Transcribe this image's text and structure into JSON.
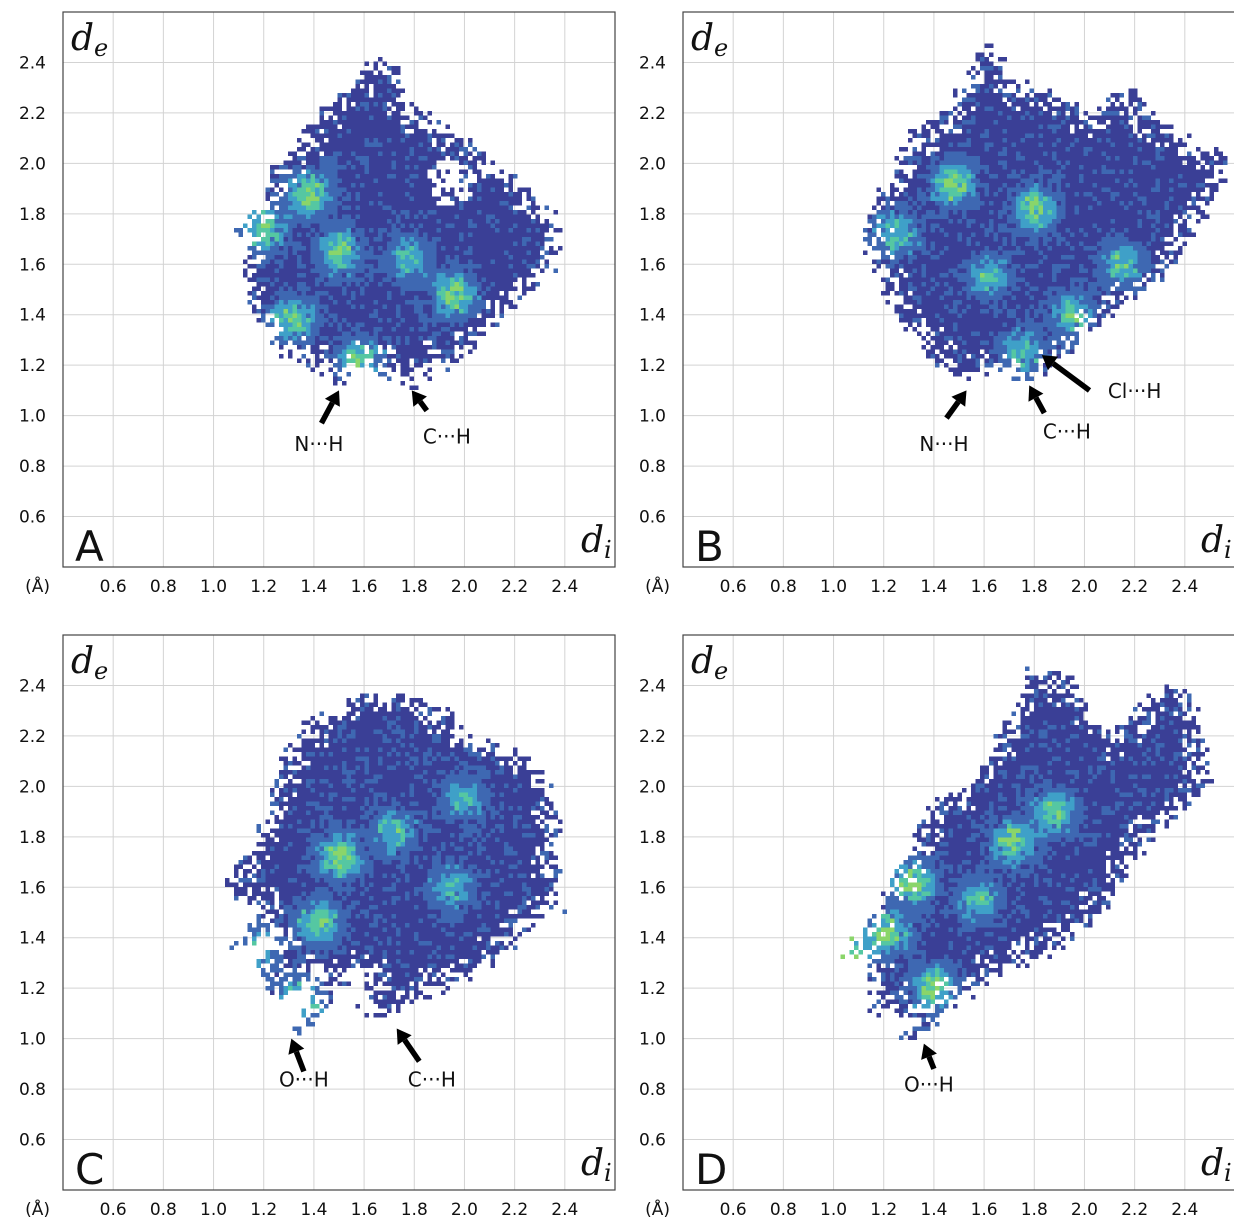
{
  "figure": {
    "unit_label": "(Å)"
  },
  "chart_data": [
    {
      "type": "heatmap",
      "panel_label": "A",
      "xlabel": "d",
      "xlabel_sub": "i",
      "ylabel": "d",
      "ylabel_sub": "e",
      "x_ticks": [
        "0.6",
        "0.8",
        "1.0",
        "1.2",
        "1.4",
        "1.6",
        "1.8",
        "2.0",
        "2.2",
        "2.4"
      ],
      "y_ticks": [
        "0.6",
        "0.8",
        "1.0",
        "1.2",
        "1.4",
        "1.6",
        "1.8",
        "2.0",
        "2.2",
        "2.4"
      ],
      "xlim": [
        0.4,
        2.6
      ],
      "ylim": [
        0.4,
        2.6
      ],
      "grid": true,
      "color_scale": [
        "#3a3f96",
        "#3e68b2",
        "#3fa0c8",
        "#55c7a2",
        "#8ad56a"
      ],
      "outline": [
        [
          1.08,
          1.7
        ],
        [
          1.18,
          1.82
        ],
        [
          1.23,
          2.02
        ],
        [
          1.33,
          2.08
        ],
        [
          1.42,
          2.22
        ],
        [
          1.52,
          2.28
        ],
        [
          1.63,
          2.43
        ],
        [
          1.73,
          2.38
        ],
        [
          1.79,
          2.23
        ],
        [
          1.93,
          2.16
        ],
        [
          2.05,
          2.08
        ],
        [
          2.2,
          1.98
        ],
        [
          2.3,
          1.86
        ],
        [
          2.4,
          1.74
        ],
        [
          2.36,
          1.58
        ],
        [
          2.24,
          1.46
        ],
        [
          2.12,
          1.33
        ],
        [
          2.01,
          1.24
        ],
        [
          1.9,
          1.17
        ],
        [
          1.82,
          1.12
        ],
        [
          1.74,
          1.11
        ],
        [
          1.68,
          1.15
        ],
        [
          1.62,
          1.19
        ],
        [
          1.56,
          1.14
        ],
        [
          1.5,
          1.1
        ],
        [
          1.45,
          1.15
        ],
        [
          1.36,
          1.2
        ],
        [
          1.26,
          1.24
        ],
        [
          1.19,
          1.33
        ],
        [
          1.13,
          1.45
        ],
        [
          1.1,
          1.52
        ],
        [
          1.12,
          1.64
        ]
      ],
      "hotspots": [
        [
          1.38,
          1.88,
          0.85
        ],
        [
          1.5,
          1.65,
          0.7
        ],
        [
          1.32,
          1.38,
          0.72
        ],
        [
          1.96,
          1.48,
          0.78
        ],
        [
          1.78,
          1.62,
          0.58
        ],
        [
          1.58,
          1.22,
          0.7
        ],
        [
          1.2,
          1.74,
          0.75
        ]
      ],
      "holes": [
        [
          1.95,
          1.93,
          0.09
        ],
        [
          2.12,
          2.0,
          0.06
        ]
      ],
      "annotations": [
        {
          "text": "N···H",
          "tip": [
            1.5,
            1.1
          ],
          "tail": [
            1.43,
            0.97
          ],
          "label_at": [
            1.42,
            0.86
          ]
        },
        {
          "text": "C···H",
          "tip": [
            1.79,
            1.1
          ],
          "tail": [
            1.85,
            1.02
          ],
          "label_at": [
            1.93,
            0.89
          ]
        }
      ]
    },
    {
      "type": "heatmap",
      "panel_label": "B",
      "xlabel": "d",
      "xlabel_sub": "i",
      "ylabel": "d",
      "ylabel_sub": "e",
      "x_ticks": [
        "0.6",
        "0.8",
        "1.0",
        "1.2",
        "1.4",
        "1.6",
        "1.8",
        "2.0",
        "2.2",
        "2.4"
      ],
      "y_ticks": [
        "0.6",
        "0.8",
        "1.0",
        "1.2",
        "1.4",
        "1.6",
        "1.8",
        "2.0",
        "2.2",
        "2.4"
      ],
      "xlim": [
        0.4,
        2.6
      ],
      "ylim": [
        0.4,
        2.6
      ],
      "grid": true,
      "color_scale": [
        "#3a3f96",
        "#3e68b2",
        "#3fa0c8",
        "#55c7a2",
        "#8ad56a"
      ],
      "outline": [
        [
          1.12,
          1.78
        ],
        [
          1.22,
          1.94
        ],
        [
          1.3,
          2.13
        ],
        [
          1.42,
          2.18
        ],
        [
          1.52,
          2.33
        ],
        [
          1.63,
          2.52
        ],
        [
          1.72,
          2.34
        ],
        [
          1.86,
          2.28
        ],
        [
          2.02,
          2.21
        ],
        [
          2.12,
          2.28
        ],
        [
          2.2,
          2.33
        ],
        [
          2.26,
          2.2
        ],
        [
          2.36,
          2.13
        ],
        [
          2.45,
          2.08
        ],
        [
          2.56,
          2.05
        ],
        [
          2.55,
          1.88
        ],
        [
          2.43,
          1.72
        ],
        [
          2.36,
          1.6
        ],
        [
          2.26,
          1.5
        ],
        [
          2.14,
          1.42
        ],
        [
          2.02,
          1.32
        ],
        [
          1.92,
          1.22
        ],
        [
          1.82,
          1.15
        ],
        [
          1.74,
          1.12
        ],
        [
          1.68,
          1.16
        ],
        [
          1.58,
          1.17
        ],
        [
          1.52,
          1.13
        ],
        [
          1.45,
          1.18
        ],
        [
          1.38,
          1.22
        ],
        [
          1.32,
          1.31
        ],
        [
          1.25,
          1.39
        ],
        [
          1.18,
          1.54
        ],
        [
          1.12,
          1.65
        ]
      ],
      "hotspots": [
        [
          1.48,
          1.92,
          0.82
        ],
        [
          1.8,
          1.82,
          0.78
        ],
        [
          1.95,
          1.4,
          0.62
        ],
        [
          2.15,
          1.6,
          0.65
        ],
        [
          1.25,
          1.72,
          0.6
        ],
        [
          1.62,
          1.55,
          0.55
        ],
        [
          1.75,
          1.25,
          0.55
        ]
      ],
      "holes": [],
      "annotations": [
        {
          "text": "N···H",
          "tip": [
            1.53,
            1.1
          ],
          "tail": [
            1.45,
            0.99
          ],
          "label_at": [
            1.44,
            0.86
          ]
        },
        {
          "text": "C···H",
          "tip": [
            1.78,
            1.12
          ],
          "tail": [
            1.84,
            1.01
          ],
          "label_at": [
            1.93,
            0.91
          ]
        },
        {
          "text": "Cl···H",
          "tip": [
            1.83,
            1.24
          ],
          "tail": [
            2.02,
            1.1
          ],
          "label_at": [
            2.2,
            1.07
          ]
        }
      ]
    },
    {
      "type": "heatmap",
      "panel_label": "C",
      "xlabel": "d",
      "xlabel_sub": "i",
      "ylabel": "d",
      "ylabel_sub": "e",
      "x_ticks": [
        "0.6",
        "0.8",
        "1.0",
        "1.2",
        "1.4",
        "1.6",
        "1.8",
        "2.0",
        "2.2",
        "2.4"
      ],
      "y_ticks": [
        "0.6",
        "0.8",
        "1.0",
        "1.2",
        "1.4",
        "1.6",
        "1.8",
        "2.0",
        "2.2",
        "2.4"
      ],
      "xlim": [
        0.4,
        2.6
      ],
      "ylim": [
        0.4,
        2.6
      ],
      "grid": true,
      "color_scale": [
        "#3a3f96",
        "#3e68b2",
        "#3fa0c8",
        "#55c7a2",
        "#8ad56a"
      ],
      "outline": [
        [
          1.04,
          1.62
        ],
        [
          1.12,
          1.72
        ],
        [
          1.2,
          1.92
        ],
        [
          1.27,
          2.11
        ],
        [
          1.36,
          2.26
        ],
        [
          1.48,
          2.32
        ],
        [
          1.58,
          2.38
        ],
        [
          1.72,
          2.38
        ],
        [
          1.84,
          2.35
        ],
        [
          1.94,
          2.3
        ],
        [
          2.04,
          2.21
        ],
        [
          2.14,
          2.16
        ],
        [
          2.28,
          2.12
        ],
        [
          2.34,
          2.05
        ],
        [
          2.38,
          1.82
        ],
        [
          2.4,
          1.5
        ],
        [
          2.3,
          1.45
        ],
        [
          2.2,
          1.36
        ],
        [
          2.1,
          1.28
        ],
        [
          2.0,
          1.22
        ],
        [
          1.88,
          1.18
        ],
        [
          1.76,
          1.12
        ],
        [
          1.68,
          1.08
        ],
        [
          1.6,
          1.08
        ],
        [
          1.56,
          1.12
        ],
        [
          1.62,
          1.22
        ],
        [
          1.55,
          1.24
        ],
        [
          1.44,
          1.1
        ],
        [
          1.32,
          1.0
        ],
        [
          1.35,
          1.12
        ],
        [
          1.4,
          1.22
        ],
        [
          1.32,
          1.18
        ],
        [
          1.22,
          1.15
        ],
        [
          1.16,
          1.18
        ],
        [
          1.18,
          1.3
        ],
        [
          1.24,
          1.4
        ],
        [
          1.08,
          1.35
        ],
        [
          1.0,
          1.3
        ],
        [
          1.1,
          1.42
        ],
        [
          1.2,
          1.5
        ],
        [
          1.1,
          1.55
        ]
      ],
      "hotspots": [
        [
          1.5,
          1.72,
          0.88
        ],
        [
          1.42,
          1.46,
          0.7
        ],
        [
          1.35,
          1.15,
          0.7
        ],
        [
          1.72,
          1.82,
          0.6
        ],
        [
          1.95,
          1.6,
          0.55
        ],
        [
          1.18,
          1.35,
          0.6
        ],
        [
          2.0,
          1.95,
          0.5
        ]
      ],
      "holes": [],
      "annotations": [
        {
          "text": "O···H",
          "tip": [
            1.31,
            1.0
          ],
          "tail": [
            1.36,
            0.87
          ],
          "label_at": [
            1.36,
            0.81
          ]
        },
        {
          "text": "C···H",
          "tip": [
            1.73,
            1.04
          ],
          "tail": [
            1.82,
            0.91
          ],
          "label_at": [
            1.87,
            0.81
          ]
        }
      ]
    },
    {
      "type": "heatmap",
      "panel_label": "D",
      "xlabel": "d",
      "xlabel_sub": "i",
      "ylabel": "d",
      "ylabel_sub": "e",
      "x_ticks": [
        "0.6",
        "0.8",
        "1.0",
        "1.2",
        "1.4",
        "1.6",
        "1.8",
        "2.0",
        "2.2",
        "2.4"
      ],
      "y_ticks": [
        "0.6",
        "0.8",
        "1.0",
        "1.2",
        "1.4",
        "1.6",
        "1.8",
        "2.0",
        "2.2",
        "2.4"
      ],
      "xlim": [
        0.4,
        2.6
      ],
      "ylim": [
        0.4,
        2.6
      ],
      "grid": true,
      "color_scale": [
        "#3a3f96",
        "#3e68b2",
        "#3fa0c8",
        "#55c7a2",
        "#8ad56a"
      ],
      "outline": [
        [
          0.97,
          1.28
        ],
        [
          1.1,
          1.4
        ],
        [
          1.18,
          1.56
        ],
        [
          1.26,
          1.7
        ],
        [
          1.32,
          1.82
        ],
        [
          1.42,
          1.96
        ],
        [
          1.52,
          2.0
        ],
        [
          1.6,
          2.12
        ],
        [
          1.7,
          2.28
        ],
        [
          1.78,
          2.48
        ],
        [
          1.86,
          2.44
        ],
        [
          1.9,
          2.48
        ],
        [
          1.96,
          2.44
        ],
        [
          2.02,
          2.3
        ],
        [
          2.1,
          2.22
        ],
        [
          2.22,
          2.34
        ],
        [
          2.32,
          2.4
        ],
        [
          2.42,
          2.38
        ],
        [
          2.48,
          2.2
        ],
        [
          2.5,
          2.0
        ],
        [
          2.4,
          1.9
        ],
        [
          2.3,
          1.82
        ],
        [
          2.2,
          1.7
        ],
        [
          2.14,
          1.58
        ],
        [
          2.08,
          1.5
        ],
        [
          2.0,
          1.42
        ],
        [
          1.9,
          1.35
        ],
        [
          1.78,
          1.3
        ],
        [
          1.66,
          1.24
        ],
        [
          1.55,
          1.18
        ],
        [
          1.45,
          1.12
        ],
        [
          1.38,
          1.03
        ],
        [
          1.27,
          0.97
        ],
        [
          1.3,
          1.08
        ],
        [
          1.25,
          1.1
        ],
        [
          1.16,
          1.1
        ],
        [
          1.12,
          1.18
        ],
        [
          1.15,
          1.3
        ],
        [
          1.05,
          1.32
        ]
      ],
      "hotspots": [
        [
          1.32,
          1.62,
          0.8
        ],
        [
          1.22,
          1.42,
          0.78
        ],
        [
          1.05,
          1.35,
          0.85
        ],
        [
          1.4,
          1.2,
          0.8
        ],
        [
          1.72,
          1.78,
          0.8
        ],
        [
          1.88,
          1.9,
          0.72
        ],
        [
          1.58,
          1.55,
          0.6
        ]
      ],
      "holes": [],
      "annotations": [
        {
          "text": "O···H",
          "tip": [
            1.36,
            0.98
          ],
          "tail": [
            1.4,
            0.88
          ],
          "label_at": [
            1.38,
            0.79
          ]
        }
      ]
    }
  ]
}
